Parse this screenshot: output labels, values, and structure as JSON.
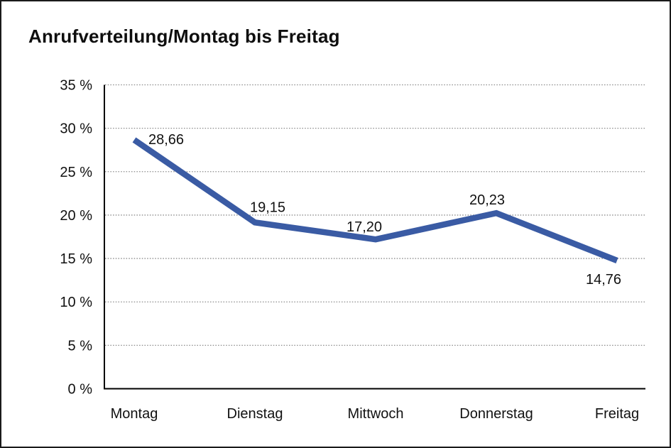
{
  "title": "Anrufverteilung/Montag bis Freitag",
  "colors": {
    "line": "#3a5ba4",
    "grid": "#8a8a8a",
    "axis": "#000000",
    "text": "#111111",
    "background": "#ffffff",
    "border": "#1a1a1a"
  },
  "chart_data": {
    "type": "line",
    "title": "Anrufverteilung/Montag bis Freitag",
    "categories": [
      "Montag",
      "Dienstag",
      "Mittwoch",
      "Donnerstag",
      "Freitag"
    ],
    "values": [
      28.66,
      19.15,
      17.2,
      20.23,
      14.76
    ],
    "value_labels": [
      "28,66",
      "19,15",
      "17,20",
      "20,23",
      "14,76"
    ],
    "xlabel": "",
    "ylabel": "",
    "ylim": [
      0,
      35
    ],
    "ytick_step": 5,
    "ytick_labels": [
      "0 %",
      "5 %",
      "10 %",
      "15 %",
      "20 %",
      "25 %",
      "30 %",
      "35 %"
    ],
    "grid": "horizontal-dotted",
    "legend": "none"
  }
}
